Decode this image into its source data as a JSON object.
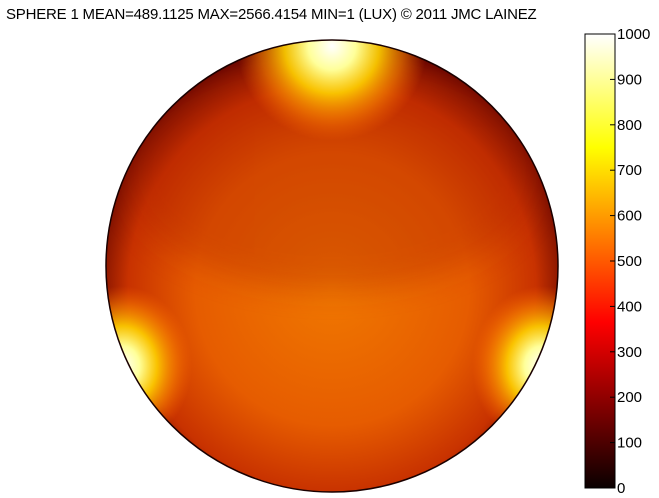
{
  "title": "SPHERE 1   MEAN=489.1125  MAX=2566.4154  MIN=1 (LUX) © 2011 JMC LAINEZ",
  "chart_data": {
    "type": "heatmap",
    "title": "SPHERE 1   MEAN=489.1125  MAX=2566.4154  MIN=1 (LUX) © 2011 JMC LAINEZ",
    "statistics": {
      "mean": 489.1125,
      "max": 2566.4154,
      "min": 1,
      "unit": "LUX"
    },
    "shape": "circle",
    "colormap": "hot",
    "colorbar": {
      "range": [
        0,
        1000
      ],
      "ticks": [
        0,
        100,
        200,
        300,
        400,
        500,
        600,
        700,
        800,
        900,
        1000
      ],
      "tick_labels": [
        "0",
        "100",
        "200",
        "300",
        "400",
        "500",
        "600",
        "700",
        "800",
        "900",
        "1000"
      ],
      "orientation": "vertical",
      "placement": "right"
    },
    "hotspots": [
      {
        "location": "top",
        "value": 1000
      },
      {
        "location": "left",
        "value": 1000
      },
      {
        "location": "right",
        "value": 1000
      }
    ],
    "center_value": 520,
    "rim_value": 220,
    "xlabel": "",
    "ylabel": ""
  }
}
